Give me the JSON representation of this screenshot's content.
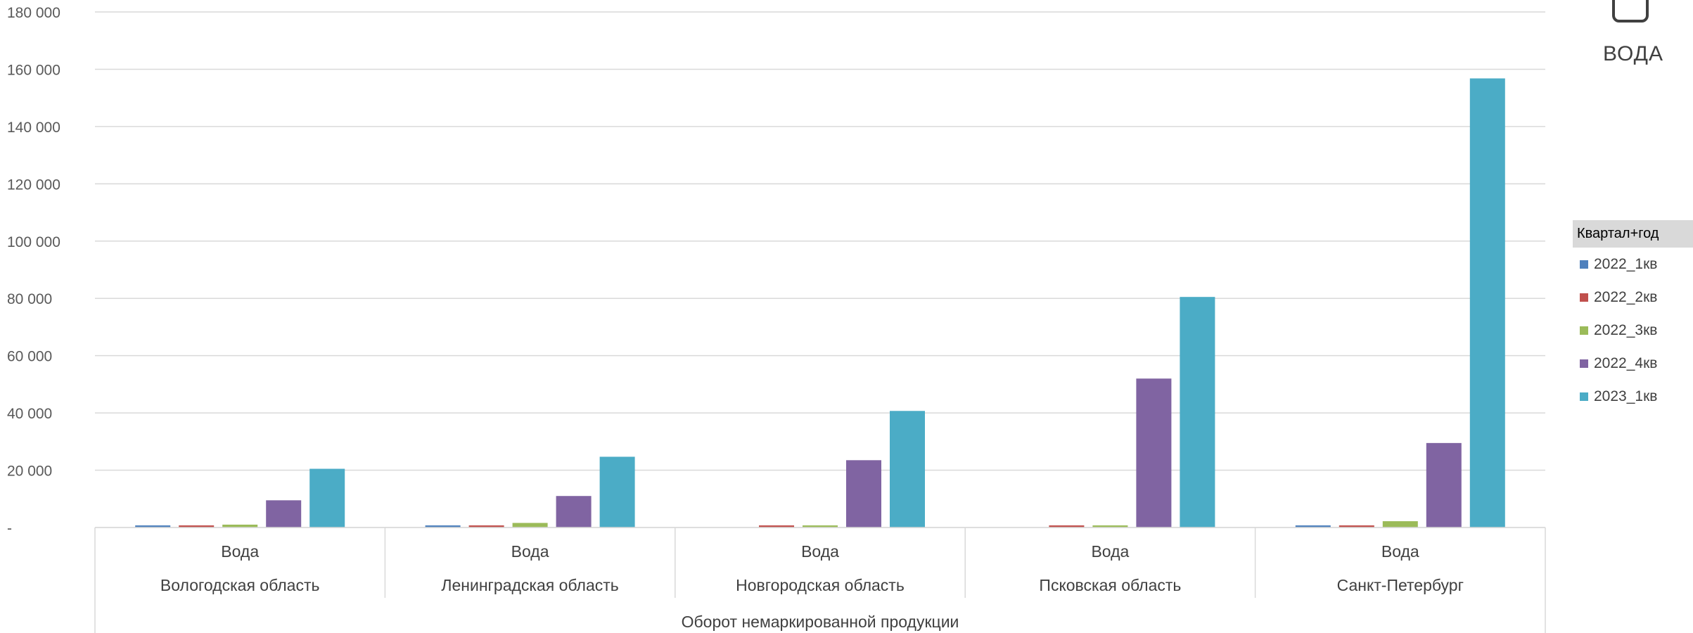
{
  "chart_data": {
    "type": "bar",
    "y_ticks": [
      "180 000",
      "160 000",
      "140 000",
      "120 000",
      "100 000",
      "80 000",
      "60 000",
      "40 000",
      "20 000",
      "-"
    ],
    "ylim": [
      0,
      180000
    ],
    "grid": true,
    "groups": [
      {
        "product": "Вода",
        "region": "Вологодская область"
      },
      {
        "product": "Вода",
        "region": "Ленинградская область"
      },
      {
        "product": "Вода",
        "region": "Новгородская область"
      },
      {
        "product": "Вода",
        "region": "Псковская область"
      },
      {
        "product": "Вода",
        "region": "Санкт-Петербург"
      }
    ],
    "outer_category": "Оборот немаркированной продукции",
    "legend": {
      "title": "Квартал+год",
      "placement": "right"
    },
    "series": [
      {
        "name": "2022_1кв",
        "color": "#4f81bd",
        "values": [
          300,
          300,
          0,
          0,
          400
        ]
      },
      {
        "name": "2022_2кв",
        "color": "#c0504d",
        "values": [
          500,
          500,
          400,
          500,
          500
        ]
      },
      {
        "name": "2022_3кв",
        "color": "#9bbb59",
        "values": [
          1000,
          1600,
          700,
          700,
          2200
        ]
      },
      {
        "name": "2022_4кв",
        "color": "#8064a2",
        "values": [
          9500,
          11000,
          23500,
          52000,
          29500
        ]
      },
      {
        "name": "2023_1кв",
        "color": "#4bacc6",
        "values": [
          20500,
          24700,
          40700,
          80500,
          156800
        ]
      }
    ]
  },
  "slicer": {
    "label": "ВОДА",
    "icon": "filter-icon"
  }
}
